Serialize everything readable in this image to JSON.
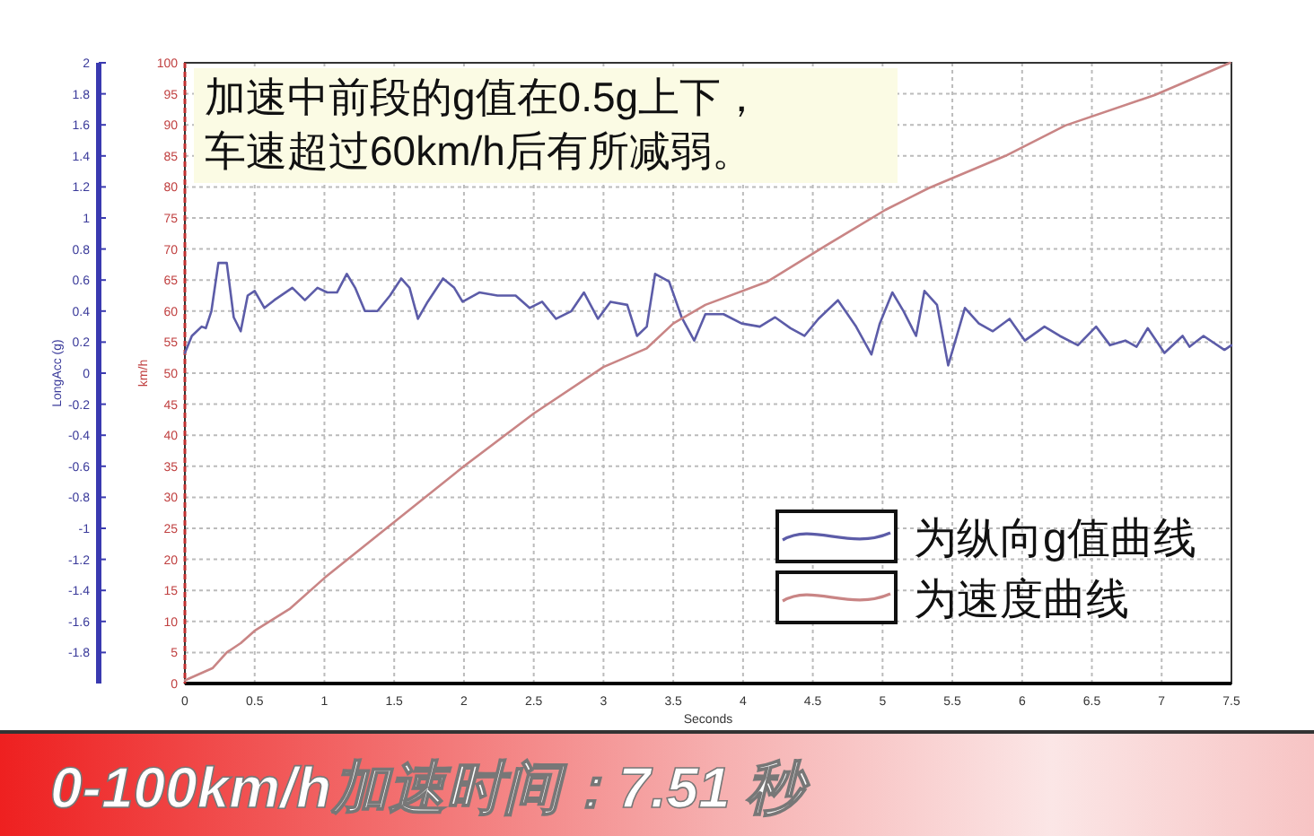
{
  "chart_data": {
    "type": "line",
    "xlabel": "Seconds",
    "ylabel": "LongAcc (g)",
    "y2label": "km/h",
    "xlim": [
      0,
      7.5
    ],
    "xticks": [
      0,
      0.5,
      1,
      1.5,
      2,
      2.5,
      3,
      3.5,
      4,
      4.5,
      5,
      5.5,
      6,
      6.5,
      7,
      7.5
    ],
    "ylim": [
      -2,
      2
    ],
    "yticks": [
      -1.8,
      -1.6,
      -1.4,
      -1.2,
      -1,
      -0.8,
      -0.6,
      -0.4,
      -0.2,
      0,
      0.2,
      0.4,
      0.6,
      0.8,
      1,
      1.2,
      1.4,
      1.6,
      1.8,
      2
    ],
    "y2lim": [
      0,
      100
    ],
    "y2ticks": [
      0,
      5,
      10,
      15,
      20,
      25,
      30,
      35,
      40,
      45,
      50,
      55,
      60,
      65,
      70,
      75,
      80,
      85,
      90,
      95,
      100
    ],
    "grid": true,
    "legend": "bottom right",
    "series": [
      {
        "name": "为纵向g值曲线",
        "color": "#5c5ca8",
        "x": [
          0,
          0.05,
          0.12,
          0.15,
          0.19,
          0.24,
          0.3,
          0.35,
          0.4,
          0.45,
          0.5,
          0.57,
          0.64,
          0.77,
          0.86,
          0.95,
          1.02,
          1.09,
          1.16,
          1.22,
          1.29,
          1.38,
          1.47,
          1.55,
          1.61,
          1.67,
          1.74,
          1.85,
          1.93,
          1.99,
          2.11,
          2.24,
          2.37,
          2.47,
          2.56,
          2.66,
          2.77,
          2.86,
          2.96,
          3.05,
          3.17,
          3.24,
          3.31,
          3.37,
          3.47,
          3.56,
          3.65,
          3.73,
          3.86,
          3.99,
          4.12,
          4.23,
          4.34,
          4.44,
          4.54,
          4.68,
          4.81,
          4.92,
          4.98,
          5.07,
          5.15,
          5.24,
          5.3,
          5.39,
          5.47,
          5.59,
          5.69,
          5.79,
          5.91,
          6.02,
          6.16,
          6.27,
          6.4,
          6.53,
          6.63,
          6.74,
          6.82,
          6.9,
          7.02,
          7.15,
          7.2,
          7.3,
          7.45,
          7.5
        ],
        "values": [
          0.13,
          0.24,
          0.3,
          0.29,
          0.4,
          0.71,
          0.71,
          0.36,
          0.27,
          0.5,
          0.53,
          0.42,
          0.47,
          0.55,
          0.47,
          0.55,
          0.52,
          0.52,
          0.64,
          0.55,
          0.4,
          0.4,
          0.5,
          0.61,
          0.55,
          0.35,
          0.46,
          0.61,
          0.55,
          0.46,
          0.52,
          0.5,
          0.5,
          0.42,
          0.46,
          0.35,
          0.4,
          0.52,
          0.35,
          0.46,
          0.44,
          0.24,
          0.3,
          0.64,
          0.59,
          0.36,
          0.21,
          0.38,
          0.38,
          0.32,
          0.3,
          0.36,
          0.29,
          0.24,
          0.35,
          0.47,
          0.3,
          0.12,
          0.32,
          0.52,
          0.4,
          0.24,
          0.53,
          0.44,
          0.05,
          0.42,
          0.32,
          0.27,
          0.35,
          0.21,
          0.3,
          0.24,
          0.18,
          0.3,
          0.18,
          0.21,
          0.17,
          0.29,
          0.13,
          0.24,
          0.17,
          0.24,
          0.15,
          0.18
        ]
      },
      {
        "name": "为速度曲线",
        "color": "#c98585",
        "axis": "y2",
        "x": [
          0,
          0.2,
          0.3,
          0.4,
          0.5,
          0.75,
          1,
          1.5,
          2,
          2.5,
          3,
          3.31,
          3.5,
          3.73,
          4.17,
          4.59,
          5.02,
          5.33,
          5.88,
          6.31,
          6.95,
          7.49
        ],
        "values": [
          0.5,
          2.5,
          5,
          6.5,
          8.5,
          12,
          17,
          26,
          35,
          43.5,
          51,
          54,
          58,
          61,
          64.7,
          70.5,
          76.3,
          79.8,
          85,
          89.9,
          94.8,
          100
        ]
      }
    ],
    "annotations": [
      "加速中前段的g值在0.5g上下，",
      "车速超过60km/h后有所减弱。",
      "0-100km/h加速时间：7.51 秒"
    ]
  }
}
